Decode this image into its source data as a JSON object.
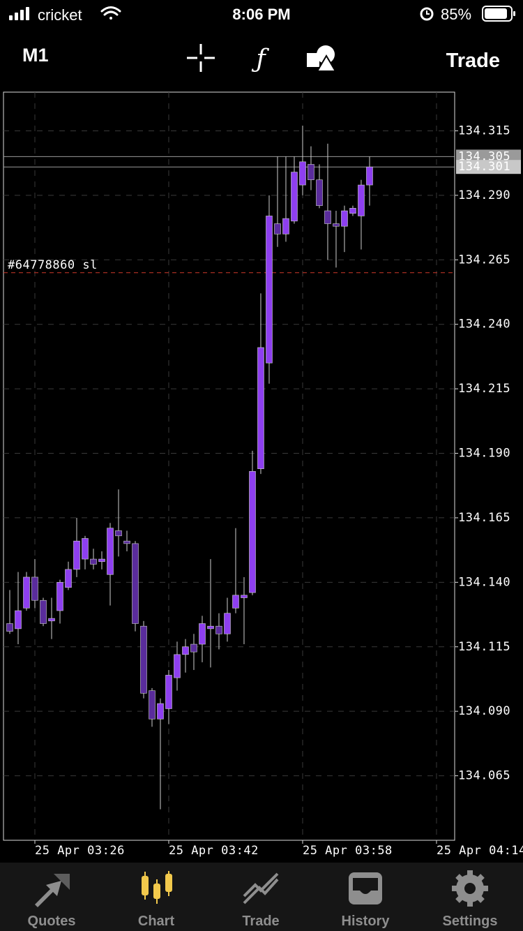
{
  "status_bar": {
    "carrier": "cricket",
    "time": "8:06 PM",
    "battery": "85%"
  },
  "toolbar": {
    "timeframe": "M1",
    "trade": "Trade"
  },
  "tabs": [
    "Quotes",
    "Chart",
    "Trade",
    "History",
    "Settings"
  ],
  "active_tab": 1,
  "chart_data": {
    "type": "candlestick",
    "open": [
      134.124,
      134.122,
      134.13,
      134.142,
      134.133,
      134.125,
      134.129,
      134.138,
      134.145,
      134.149,
      134.149,
      134.148,
      134.143,
      134.16,
      134.156,
      134.155,
      134.123,
      134.098,
      134.087,
      134.091,
      134.103,
      134.112,
      134.116,
      134.116,
      134.122,
      134.123,
      134.12,
      134.13,
      134.134,
      134.136,
      134.184,
      134.225,
      134.279,
      134.275,
      134.28,
      134.294,
      134.302,
      134.296,
      134.284,
      134.279,
      134.278,
      134.283,
      134.282,
      134.294
    ],
    "high": [
      134.137,
      134.144,
      134.144,
      134.149,
      134.134,
      134.134,
      134.141,
      134.148,
      134.165,
      134.158,
      134.153,
      134.152,
      134.163,
      134.176,
      134.16,
      134.156,
      134.125,
      134.099,
      134.095,
      134.106,
      134.117,
      134.118,
      134.12,
      134.127,
      134.149,
      134.128,
      134.134,
      134.161,
      134.142,
      134.191,
      134.252,
      134.29,
      134.305,
      134.305,
      134.305,
      134.317,
      134.309,
      134.302,
      134.31,
      134.284,
      134.286,
      134.286,
      134.296,
      134.305
    ],
    "low": [
      134.12,
      134.116,
      134.129,
      134.13,
      134.123,
      134.118,
      134.124,
      134.137,
      134.142,
      134.145,
      134.145,
      134.145,
      134.131,
      134.15,
      134.152,
      134.121,
      134.095,
      134.084,
      134.052,
      134.085,
      134.098,
      134.105,
      134.106,
      134.109,
      134.107,
      134.114,
      134.117,
      134.128,
      134.116,
      134.135,
      134.182,
      134.217,
      134.27,
      134.272,
      134.279,
      134.29,
      134.292,
      134.285,
      134.265,
      134.262,
      134.268,
      134.282,
      134.269,
      134.286
    ],
    "close": [
      134.121,
      134.129,
      134.142,
      134.133,
      134.124,
      134.126,
      134.14,
      134.145,
      134.156,
      134.157,
      134.147,
      134.149,
      134.161,
      134.158,
      134.155,
      134.124,
      134.097,
      134.087,
      134.093,
      134.104,
      134.112,
      134.115,
      134.113,
      134.124,
      134.123,
      134.12,
      134.128,
      134.135,
      134.135,
      134.183,
      134.231,
      134.282,
      134.275,
      134.281,
      134.299,
      134.303,
      134.296,
      134.286,
      134.279,
      134.278,
      134.284,
      134.285,
      134.294,
      134.301
    ],
    "up_color": "#8e3ff0",
    "down_color": "#5a2c9c",
    "ylim": [
      134.04,
      134.33
    ],
    "yticks": [
      134.315,
      {
        "value": 134.29,
        "label": "134.290"
      },
      134.265,
      {
        "value": 134.24,
        "label": "134.240"
      },
      134.215,
      {
        "value": 134.19,
        "label": "134.190"
      },
      134.165,
      {
        "value": 134.14,
        "label": "134.140"
      },
      134.115,
      {
        "value": 134.09,
        "label": "134.090"
      },
      134.065
    ],
    "xlim": [
      -0.75,
      53.17
    ],
    "xticks": [
      {
        "value": 3,
        "label": "25 Apr 03:26"
      },
      {
        "value": 19,
        "label": "25 Apr 03:42"
      },
      {
        "value": 35,
        "label": "25 Apr 03:58"
      },
      {
        "value": 51,
        "label": "25 Apr 04:14"
      }
    ],
    "grid": true,
    "ask": 134.305,
    "bid": 134.301,
    "annotations": [
      {
        "text": "#64778860 sl",
        "value": 134.26
      }
    ]
  }
}
